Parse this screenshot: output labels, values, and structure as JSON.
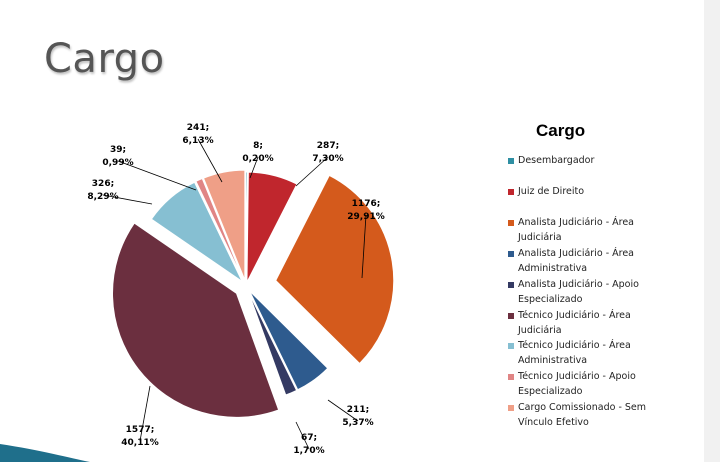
{
  "slide": {
    "title": "Cargo"
  },
  "chart_data": {
    "type": "pie",
    "title": "Cargo",
    "legend_position": "right",
    "slices": [
      {
        "name": "Desembargador",
        "value": 8,
        "percent": "0,20%",
        "color": "#2e8fa3",
        "label_value": "8;",
        "label_percent": "0,20%"
      },
      {
        "name": "Juiz de Direito",
        "value": 287,
        "percent": "7,30%",
        "color": "#c0262d",
        "label_value": "287;",
        "label_percent": "7,30%"
      },
      {
        "name": "Analista Judiciário - Área Judiciária",
        "value": 1176,
        "percent": "29,91%",
        "color": "#d45a1c",
        "label_value": "1176;",
        "label_percent": "29,91%"
      },
      {
        "name": "Analista Judiciário - Área Administrativa",
        "value": 211,
        "percent": "5,37%",
        "color": "#2e5b8e",
        "label_value": "211;",
        "label_percent": "5,37%"
      },
      {
        "name": "Analista Judiciário - Apoio Especializado",
        "value": 67,
        "percent": "1,70%",
        "color": "#343a63",
        "label_value": "67;",
        "label_percent": "1,70%"
      },
      {
        "name": "Técnico Judiciário - Área Judiciária",
        "value": 1577,
        "percent": "40,11%",
        "color": "#6b2f3f",
        "label_value": "1577;",
        "label_percent": "40,11%"
      },
      {
        "name": "Técnico Judiciário - Área Administrativa",
        "value": 326,
        "percent": "8,29%",
        "color": "#86bfd2",
        "label_value": "326;",
        "label_percent": "8,29%"
      },
      {
        "name": "Técnico Judiciário - Apoio Especializado",
        "value": 39,
        "percent": "0,99%",
        "color": "#e08585",
        "label_value": "39;",
        "label_percent": "0,99%"
      },
      {
        "name": "Cargo Comissionado - Sem Vínculo Efetivo",
        "value": 241,
        "percent": "6,13%",
        "color": "#ef9f87",
        "label_value": "241;",
        "label_percent": "6,13%"
      }
    ]
  },
  "legend": {
    "title": "Cargo",
    "items": [
      {
        "label": "Desembargador",
        "color": "#2e8fa3"
      },
      {
        "label": "Juiz de Direito",
        "color": "#c0262d"
      },
      {
        "label": "Analista Judiciário - Área Judiciária",
        "color": "#d45a1c"
      },
      {
        "label": "Analista Judiciário - Área Administrativa",
        "color": "#2e5b8e"
      },
      {
        "label": "Analista Judiciário - Apoio Especializado",
        "color": "#343a63"
      },
      {
        "label": "Técnico Judiciário - Área Judiciária",
        "color": "#6b2f3f"
      },
      {
        "label": "Técnico Judiciário - Área Administrativa",
        "color": "#86bfd2"
      },
      {
        "label": "Técnico Judiciário - Apoio Especializado",
        "color": "#e08585"
      },
      {
        "label": "Cargo Comissionado - Sem Vínculo Efetivo",
        "color": "#ef9f87"
      }
    ]
  },
  "theme": {
    "wave_color": "#1f6f8b"
  }
}
